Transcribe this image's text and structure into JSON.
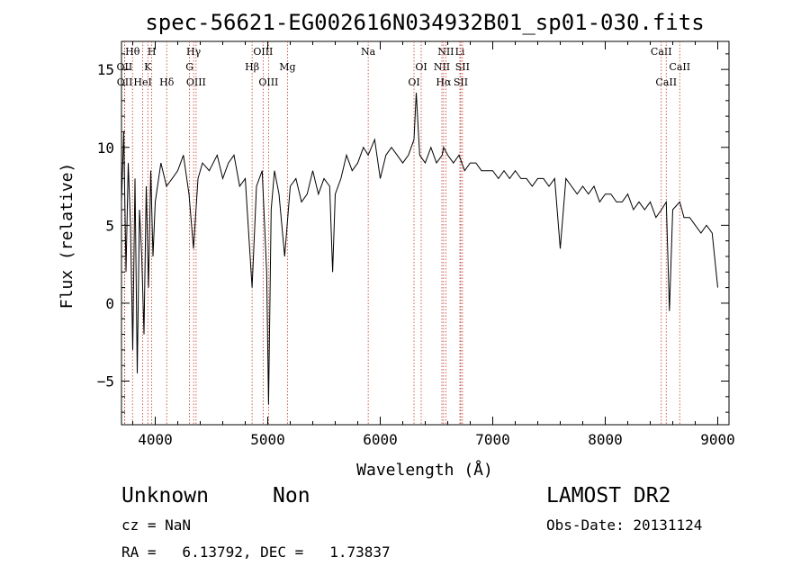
{
  "chart_data": {
    "type": "line",
    "title": "spec-56621-EG002616N034932B01_sp01-030.fits",
    "xlabel": "Wavelength (Å)",
    "ylabel": "Flux (relative)",
    "xlim": [
      3700,
      9100
    ],
    "ylim": [
      -7.8,
      16.8
    ],
    "xticks": [
      4000,
      5000,
      6000,
      7000,
      8000,
      9000
    ],
    "yticks": [
      -5,
      0,
      5,
      10,
      15
    ],
    "grid": false,
    "series": [
      {
        "color": "#000000",
        "x": [
          3700,
          3720,
          3740,
          3760,
          3780,
          3800,
          3820,
          3840,
          3860,
          3880,
          3900,
          3920,
          3940,
          3960,
          3980,
          4000,
          4050,
          4100,
          4150,
          4200,
          4250,
          4300,
          4340,
          4380,
          4420,
          4480,
          4550,
          4600,
          4650,
          4700,
          4750,
          4800,
          4861,
          4900,
          4950,
          4990,
          5007,
          5030,
          5060,
          5100,
          5150,
          5200,
          5250,
          5300,
          5350,
          5400,
          5450,
          5500,
          5550,
          5577,
          5600,
          5650,
          5700,
          5750,
          5800,
          5850,
          5893,
          5950,
          6000,
          6050,
          6100,
          6150,
          6200,
          6250,
          6300,
          6320,
          6350,
          6400,
          6450,
          6500,
          6550,
          6563,
          6600,
          6650,
          6700,
          6750,
          6800,
          6850,
          6900,
          6950,
          7000,
          7050,
          7100,
          7150,
          7200,
          7250,
          7300,
          7350,
          7400,
          7450,
          7500,
          7550,
          7600,
          7650,
          7700,
          7750,
          7800,
          7850,
          7900,
          7950,
          8000,
          8050,
          8100,
          8150,
          8200,
          8250,
          8300,
          8350,
          8400,
          8450,
          8500,
          8542,
          8570,
          8600,
          8662,
          8700,
          8750,
          8800,
          8850,
          8900,
          8950,
          9000
        ],
        "y": [
          6.5,
          11,
          2,
          9,
          5,
          -3,
          8,
          -4.5,
          6,
          3,
          -2,
          7.5,
          1,
          8.5,
          3,
          6.5,
          9,
          7.5,
          8,
          8.5,
          9.5,
          7,
          3.5,
          8,
          9,
          8.5,
          9.5,
          8,
          9,
          9.5,
          7.5,
          8,
          1,
          7.5,
          8.5,
          2,
          -6.5,
          6,
          8.5,
          7,
          3,
          7.5,
          8,
          6.5,
          7,
          8.5,
          7,
          8,
          7.5,
          2,
          7,
          8,
          9.5,
          8.5,
          9,
          10,
          9.5,
          10.5,
          8,
          9.5,
          10,
          9.5,
          9,
          9.5,
          10.5,
          13.5,
          9.5,
          9,
          10,
          9,
          9.5,
          10,
          9.5,
          9,
          9.5,
          8.5,
          9,
          9,
          8.5,
          8.5,
          8.5,
          8,
          8.5,
          8,
          8.5,
          8,
          8,
          7.5,
          8,
          8,
          7.5,
          8,
          3.5,
          8,
          7.5,
          7,
          7.5,
          7,
          7.5,
          6.5,
          7,
          7,
          6.5,
          6.5,
          7,
          6,
          6.5,
          6,
          6.5,
          5.5,
          6,
          6.5,
          -0.5,
          6,
          6.5,
          5.5,
          5.5,
          5,
          4.5,
          5,
          4.5,
          1
        ]
      }
    ],
    "lines": [
      {
        "name": "Hθ",
        "x": 3798,
        "row": 1
      },
      {
        "name": "OII",
        "x": 3727,
        "row": 2
      },
      {
        "name": "OII",
        "x": 3729,
        "row": 3
      },
      {
        "name": "H",
        "x": 3969,
        "row": 1
      },
      {
        "name": "K",
        "x": 3934,
        "row": 2
      },
      {
        "name": "HeI",
        "x": 3889,
        "row": 3
      },
      {
        "name": "Hδ",
        "x": 4102,
        "row": 3
      },
      {
        "name": "Hγ",
        "x": 4341,
        "row": 1
      },
      {
        "name": "G",
        "x": 4305,
        "row": 2
      },
      {
        "name": "OIII",
        "x": 4363,
        "row": 3
      },
      {
        "name": "OIII",
        "x": 4959,
        "row": 1
      },
      {
        "name": "Hβ",
        "x": 4861,
        "row": 2
      },
      {
        "name": "OIII",
        "x": 5007,
        "row": 3
      },
      {
        "name": "Mg",
        "x": 5175,
        "row": 2
      },
      {
        "name": "Na",
        "x": 5893,
        "row": 1
      },
      {
        "name": "OI",
        "x": 6364,
        "row": 2
      },
      {
        "name": "OI",
        "x": 6300,
        "row": 3
      },
      {
        "name": "NII",
        "x": 6583,
        "row": 1
      },
      {
        "name": "NII",
        "x": 6548,
        "row": 2
      },
      {
        "name": "Hα",
        "x": 6563,
        "row": 3
      },
      {
        "name": "Li",
        "x": 6708,
        "row": 1
      },
      {
        "name": "SII",
        "x": 6731,
        "row": 2
      },
      {
        "name": "SII",
        "x": 6716,
        "row": 3
      },
      {
        "name": "CaII",
        "x": 8498,
        "row": 1
      },
      {
        "name": "CaII",
        "x": 8662,
        "row": 2
      },
      {
        "name": "CaII",
        "x": 8542,
        "row": 3
      }
    ]
  },
  "info": {
    "class": "Unknown",
    "subclass": "Non",
    "survey": "LAMOST DR2",
    "cz": "cz = NaN",
    "obs_date": "Obs-Date: 20131124",
    "coords": "RA =   6.13792, DEC =   1.73837"
  }
}
